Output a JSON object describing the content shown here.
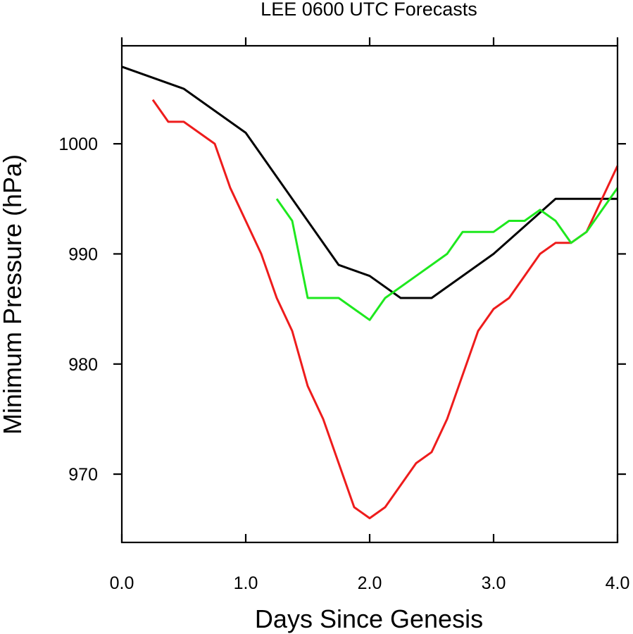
{
  "chart_data": {
    "type": "line",
    "title": "LEE 0600 UTC Forecasts",
    "xlabel": "Days Since Genesis",
    "ylabel": "Minimum Pressure (hPa)",
    "xlim": [
      0,
      4
    ],
    "ylim": [
      963.8,
      1008.9
    ],
    "xticks": [
      0,
      1,
      2,
      3,
      4
    ],
    "xtick_labels": [
      "0.0",
      "1.0",
      "2.0",
      "3.0",
      "4.0"
    ],
    "yticks": [
      970,
      980,
      990,
      1000
    ],
    "ytick_labels": [
      "970",
      "980",
      "990",
      "1000"
    ],
    "grid": false,
    "legend": "none",
    "series": [
      {
        "color": "#000000",
        "points": [
          [
            0,
            1007
          ],
          [
            0.5,
            1005
          ],
          [
            1.0,
            1001
          ],
          [
            1.75,
            989
          ],
          [
            2.0,
            988
          ],
          [
            2.25,
            986
          ],
          [
            2.5,
            986
          ],
          [
            3.0,
            990
          ],
          [
            3.5,
            995
          ],
          [
            4.0,
            995
          ]
        ]
      },
      {
        "color": "#ee1c1c",
        "points": [
          [
            0.25,
            1004
          ],
          [
            0.375,
            1002
          ],
          [
            0.5,
            1002
          ],
          [
            0.75,
            1000
          ],
          [
            0.875,
            996
          ],
          [
            1.0,
            993
          ],
          [
            1.125,
            990
          ],
          [
            1.25,
            986
          ],
          [
            1.375,
            983
          ],
          [
            1.5,
            978
          ],
          [
            1.625,
            975
          ],
          [
            1.75,
            971
          ],
          [
            1.875,
            967
          ],
          [
            2.0,
            966
          ],
          [
            2.125,
            967
          ],
          [
            2.25,
            969
          ],
          [
            2.375,
            971
          ],
          [
            2.5,
            972
          ],
          [
            2.625,
            975
          ],
          [
            2.75,
            979
          ],
          [
            2.875,
            983
          ],
          [
            3.0,
            985
          ],
          [
            3.125,
            986
          ],
          [
            3.25,
            988
          ],
          [
            3.375,
            990
          ],
          [
            3.5,
            991
          ],
          [
            3.625,
            991
          ],
          [
            3.75,
            992
          ],
          [
            3.875,
            995
          ],
          [
            4.0,
            998
          ]
        ]
      },
      {
        "color": "#1ee81e",
        "points": [
          [
            1.25,
            995
          ],
          [
            1.375,
            993
          ],
          [
            1.5,
            986
          ],
          [
            1.625,
            986
          ],
          [
            1.75,
            986
          ],
          [
            2.0,
            984
          ],
          [
            2.125,
            986
          ],
          [
            2.375,
            988
          ],
          [
            2.625,
            990
          ],
          [
            2.75,
            992
          ],
          [
            3.0,
            992
          ],
          [
            3.125,
            993
          ],
          [
            3.25,
            993
          ],
          [
            3.375,
            994
          ],
          [
            3.5,
            993
          ],
          [
            3.625,
            991
          ],
          [
            3.75,
            992
          ],
          [
            4.0,
            996
          ]
        ]
      }
    ]
  }
}
